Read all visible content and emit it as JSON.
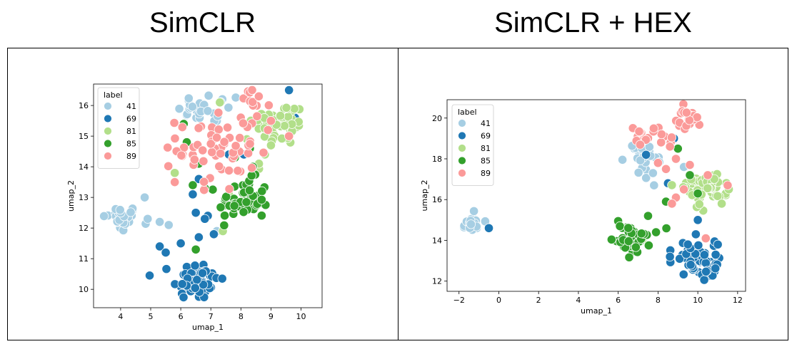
{
  "titles": {
    "left": "SimCLR",
    "right": "SimCLR + HEX"
  },
  "colors": {
    "41": "#a6cee3",
    "69": "#1f78b4",
    "81": "#b2df8a",
    "85": "#33a02c",
    "89": "#fb9a99"
  },
  "chart_data": [
    {
      "type": "scatter",
      "title": "SimCLR",
      "xlabel": "umap_1",
      "ylabel": "umap_2",
      "xlim": [
        3.1,
        10.7
      ],
      "ylim": [
        9.4,
        16.7
      ],
      "xticks": [
        4,
        5,
        6,
        7,
        8,
        9,
        10
      ],
      "yticks": [
        10,
        11,
        12,
        13,
        14,
        15,
        16
      ],
      "legend": {
        "title": "label",
        "position": "top-left",
        "entries": [
          "41",
          "69",
          "81",
          "85",
          "89"
        ]
      },
      "series": [
        {
          "name": "41",
          "clusters": [
            {
              "cx": 4.0,
              "cy": 12.3,
              "sx": 0.3,
              "sy": 0.22,
              "n": 32
            },
            {
              "cx": 7.0,
              "cy": 15.9,
              "sx": 0.55,
              "sy": 0.25,
              "n": 28
            }
          ],
          "points": [
            {
              "x": 4.8,
              "y": 13.0
            },
            {
              "x": 5.6,
              "y": 12.1
            },
            {
              "x": 5.3,
              "y": 12.2
            },
            {
              "x": 4.9,
              "y": 12.3
            },
            {
              "x": 7.2,
              "y": 11.9
            }
          ]
        },
        {
          "name": "69",
          "clusters": [
            {
              "cx": 6.5,
              "cy": 10.3,
              "sx": 0.38,
              "sy": 0.32,
              "n": 60
            }
          ],
          "points": [
            {
              "x": 5.3,
              "y": 11.4
            },
            {
              "x": 5.5,
              "y": 11.2
            },
            {
              "x": 6.0,
              "y": 11.5
            },
            {
              "x": 6.6,
              "y": 11.7
            },
            {
              "x": 6.9,
              "y": 12.4
            },
            {
              "x": 7.1,
              "y": 11.8
            },
            {
              "x": 6.5,
              "y": 12.5
            },
            {
              "x": 6.4,
              "y": 13.1
            },
            {
              "x": 9.6,
              "y": 16.5
            },
            {
              "x": 9.8,
              "y": 15.6
            },
            {
              "x": 7.6,
              "y": 14.4
            },
            {
              "x": 8.1,
              "y": 14.4
            },
            {
              "x": 6.6,
              "y": 13.6
            },
            {
              "x": 6.8,
              "y": 12.3
            }
          ]
        },
        {
          "name": "81",
          "clusters": [
            {
              "cx": 9.3,
              "cy": 15.4,
              "sx": 0.45,
              "sy": 0.35,
              "n": 60
            }
          ],
          "points": [
            {
              "x": 7.6,
              "y": 13.1
            },
            {
              "x": 7.4,
              "y": 11.9
            },
            {
              "x": 5.8,
              "y": 13.8
            },
            {
              "x": 8.6,
              "y": 14.1
            },
            {
              "x": 8.8,
              "y": 14.4
            },
            {
              "x": 9.0,
              "y": 14.7
            },
            {
              "x": 8.2,
              "y": 14.9
            },
            {
              "x": 7.3,
              "y": 16.1
            }
          ]
        },
        {
          "name": "85",
          "clusters": [
            {
              "cx": 8.1,
              "cy": 12.9,
              "sx": 0.42,
              "sy": 0.35,
              "n": 55
            }
          ],
          "points": [
            {
              "x": 6.4,
              "y": 13.4
            },
            {
              "x": 6.8,
              "y": 13.3
            },
            {
              "x": 6.5,
              "y": 11.3
            },
            {
              "x": 6.1,
              "y": 15.4
            },
            {
              "x": 6.6,
              "y": 14.1
            },
            {
              "x": 7.8,
              "y": 14.3
            },
            {
              "x": 8.4,
              "y": 14.0
            },
            {
              "x": 6.2,
              "y": 14.8
            },
            {
              "x": 7.2,
              "y": 15.2
            },
            {
              "x": 8.3,
              "y": 14.6
            }
          ]
        },
        {
          "name": "89",
          "clusters": [
            {
              "cx": 7.2,
              "cy": 14.6,
              "sx": 0.65,
              "sy": 0.7,
              "n": 60
            },
            {
              "cx": 8.3,
              "cy": 16.0,
              "sx": 0.3,
              "sy": 0.25,
              "n": 12
            }
          ],
          "points": [
            {
              "x": 5.8,
              "y": 13.5
            },
            {
              "x": 9.0,
              "y": 15.5
            },
            {
              "x": 8.9,
              "y": 15.2
            },
            {
              "x": 9.6,
              "y": 15.0
            }
          ]
        }
      ]
    },
    {
      "type": "scatter",
      "title": "SimCLR + HEX",
      "xlabel": "umap_1",
      "ylabel": "umap_2",
      "xlim": [
        -2.6,
        12.4
      ],
      "ylim": [
        11.5,
        20.9
      ],
      "xticks": [
        -2,
        0,
        2,
        4,
        6,
        8,
        10,
        12
      ],
      "yticks": [
        12,
        14,
        16,
        18,
        20
      ],
      "legend": {
        "title": "label",
        "position": "top-left",
        "entries": [
          "41",
          "69",
          "81",
          "85",
          "89"
        ]
      },
      "series": [
        {
          "name": "41",
          "clusters": [
            {
              "cx": -1.3,
              "cy": 14.8,
              "sx": 0.3,
              "sy": 0.18,
              "n": 20
            },
            {
              "cx": 7.3,
              "cy": 18.0,
              "sx": 0.45,
              "sy": 0.4,
              "n": 25
            }
          ],
          "points": [
            {
              "x": 7.8,
              "y": 16.7
            },
            {
              "x": 9.3,
              "y": 17.6
            }
          ]
        },
        {
          "name": "69",
          "clusters": [
            {
              "cx": 10.0,
              "cy": 13.1,
              "sx": 0.55,
              "sy": 0.5,
              "n": 55
            }
          ],
          "points": [
            {
              "x": -0.5,
              "y": 14.6
            },
            {
              "x": 8.5,
              "y": 16.8
            },
            {
              "x": 8.8,
              "y": 19.0
            },
            {
              "x": 8.6,
              "y": 13.2
            },
            {
              "x": 9.5,
              "y": 13.8
            },
            {
              "x": 9.9,
              "y": 14.3
            },
            {
              "x": 10.0,
              "y": 15.0
            },
            {
              "x": 7.4,
              "y": 18.2
            }
          ]
        },
        {
          "name": "81",
          "clusters": [
            {
              "cx": 10.3,
              "cy": 16.5,
              "sx": 0.5,
              "sy": 0.35,
              "n": 55
            }
          ],
          "points": [
            {
              "x": 7.2,
              "y": 14.0
            },
            {
              "x": 11.2,
              "y": 15.8
            }
          ]
        },
        {
          "name": "85",
          "clusters": [
            {
              "cx": 6.6,
              "cy": 14.1,
              "sx": 0.45,
              "sy": 0.35,
              "n": 50
            }
          ],
          "points": [
            {
              "x": 7.5,
              "y": 15.2
            },
            {
              "x": 7.9,
              "y": 14.4
            },
            {
              "x": 9.0,
              "y": 18.5
            },
            {
              "x": 9.6,
              "y": 17.2
            },
            {
              "x": 8.4,
              "y": 15.9
            },
            {
              "x": 10.0,
              "y": 16.3
            }
          ]
        },
        {
          "name": "89",
          "clusters": [
            {
              "cx": 9.5,
              "cy": 19.9,
              "sx": 0.3,
              "sy": 0.25,
              "n": 25
            },
            {
              "cx": 7.5,
              "cy": 19.2,
              "sx": 0.5,
              "sy": 0.3,
              "n": 18
            }
          ],
          "points": [
            {
              "x": 8.6,
              "y": 18.6
            },
            {
              "x": 8.9,
              "y": 18.0
            },
            {
              "x": 9.6,
              "y": 17.7
            },
            {
              "x": 8.4,
              "y": 17.5
            },
            {
              "x": 10.5,
              "y": 17.2
            },
            {
              "x": 9.3,
              "y": 16.5
            },
            {
              "x": 8.9,
              "y": 16.1
            },
            {
              "x": 8.7,
              "y": 15.8
            },
            {
              "x": 10.4,
              "y": 14.1
            },
            {
              "x": 11.5,
              "y": 16.7
            },
            {
              "x": 8.0,
              "y": 17.8
            }
          ]
        }
      ]
    }
  ]
}
